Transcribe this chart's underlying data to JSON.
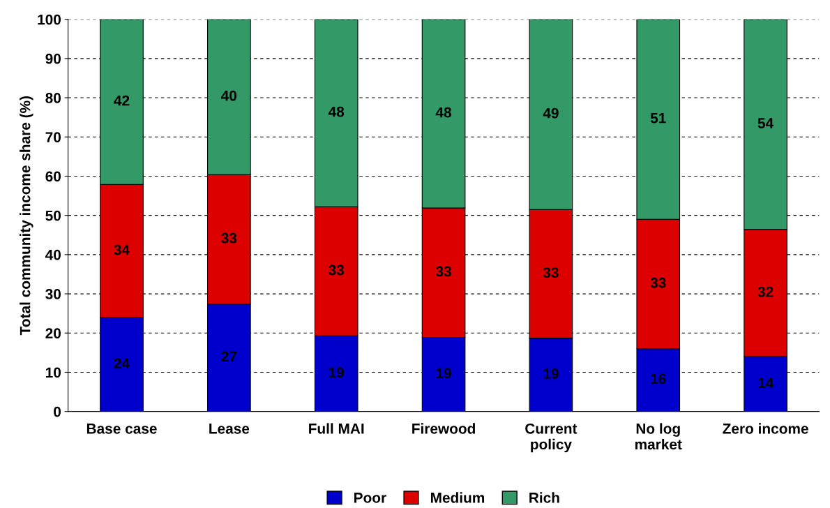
{
  "chart_data": {
    "type": "bar",
    "stacked": true,
    "ylabel": "Total community income share (%)",
    "categories": [
      "Base case",
      "Lease",
      "Full MAI",
      "Firewood",
      "Current\npolicy",
      "No log\nmarket",
      "Zero income"
    ],
    "series": [
      {
        "name": "Poor",
        "color": "#0000cc",
        "values": [
          23.9,
          27.4,
          19.3,
          18.9,
          18.7,
          16.0,
          14.0
        ],
        "value_labels": [
          "24",
          "27",
          "19",
          "19",
          "19",
          "16",
          "14"
        ]
      },
      {
        "name": "Medium",
        "color": "#dd0000",
        "values": [
          34.0,
          33.0,
          32.9,
          33.0,
          32.8,
          33.0,
          32.4
        ],
        "value_labels": [
          "34",
          "33",
          "33",
          "33",
          "33",
          "33",
          "32"
        ]
      },
      {
        "name": "Rich",
        "color": "#339966",
        "values": [
          42.1,
          39.6,
          47.8,
          48.1,
          48.5,
          51.0,
          53.6
        ],
        "value_labels": [
          "42",
          "40",
          "48",
          "48",
          "49",
          "51",
          "54"
        ]
      }
    ],
    "ylim": [
      0,
      100
    ],
    "yticks": [
      0,
      10,
      20,
      30,
      40,
      50,
      60,
      70,
      80,
      90,
      100
    ],
    "grid": "y",
    "legend": "bottom"
  }
}
